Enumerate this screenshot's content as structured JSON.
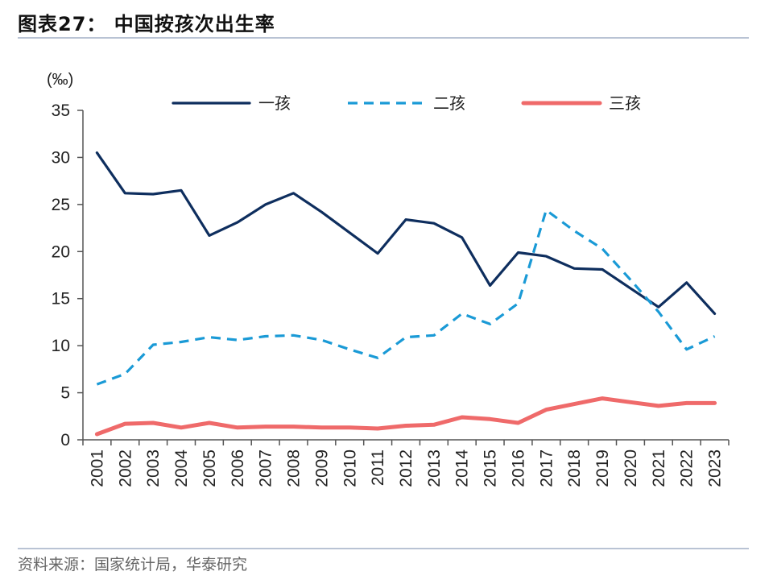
{
  "header": {
    "title": "图表27：  中国按孩次出生率"
  },
  "footer": {
    "source": "资料来源：国家统计局，华泰研究"
  },
  "chart_data": {
    "type": "line",
    "unit_label": "(‰)",
    "ylim": [
      0,
      35
    ],
    "yticks": [
      0,
      5,
      10,
      15,
      20,
      25,
      30,
      35
    ],
    "x": [
      "2001",
      "2002",
      "2003",
      "2004",
      "2005",
      "2006",
      "2007",
      "2008",
      "2009",
      "2010",
      "2011",
      "2012",
      "2013",
      "2014",
      "2015",
      "2016",
      "2017",
      "2018",
      "2019",
      "2020",
      "2021",
      "2022",
      "2023"
    ],
    "legend_position": "top",
    "series": [
      {
        "name": "一孩",
        "color": "#0e2e5e",
        "dash": "solid",
        "values": [
          30.5,
          26.2,
          26.1,
          26.5,
          21.7,
          23.1,
          25.0,
          26.2,
          24.2,
          22.0,
          19.8,
          23.4,
          23.0,
          21.5,
          16.4,
          19.9,
          19.5,
          18.2,
          18.1,
          16.1,
          14.1,
          16.7,
          13.4
        ]
      },
      {
        "name": "二孩",
        "color": "#1a9ad6",
        "dash": "dashed",
        "values": [
          5.9,
          7.0,
          10.1,
          10.4,
          10.9,
          10.6,
          11.0,
          11.1,
          10.6,
          9.6,
          8.7,
          10.9,
          11.1,
          13.4,
          12.3,
          14.5,
          24.4,
          22.2,
          20.3,
          17.0,
          13.6,
          9.6,
          11.0
        ]
      },
      {
        "name": "三孩",
        "color": "#ef6a6a",
        "dash": "solid",
        "values": [
          0.6,
          1.7,
          1.8,
          1.3,
          1.8,
          1.3,
          1.4,
          1.4,
          1.3,
          1.3,
          1.2,
          1.5,
          1.6,
          2.4,
          2.2,
          1.8,
          3.2,
          3.8,
          4.4,
          4.0,
          3.6,
          3.9,
          3.9
        ]
      }
    ]
  }
}
